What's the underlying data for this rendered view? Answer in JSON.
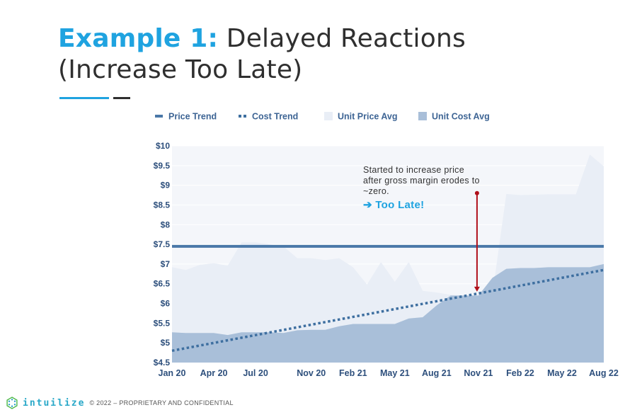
{
  "slide": {
    "title_accent": "Example 1:",
    "title_rest": " Delayed Reactions",
    "title_line2": "(Increase Too Late)",
    "brand": "intuilize",
    "copyright": "© 2022 – PROPRIETARY AND CONFIDENTIAL",
    "colors": {
      "accent": "#1fa3e0",
      "price_trend": "#4a78a8",
      "cost_trend": "#3e6fa0",
      "unit_price_avg": "#e9eef6",
      "unit_cost_avg": "#a9bfd9",
      "arrow": "#b0101a"
    }
  },
  "chart_data": {
    "type": "area",
    "legend_position": "top",
    "legend": [
      "Price Trend",
      "Cost Trend",
      "Unit Price Avg",
      "Unit Cost Avg"
    ],
    "x_tick_labels": [
      "Jan 20",
      "Apr 20",
      "Jul 20",
      "Nov 20",
      "Feb 21",
      "May 21",
      "Aug 21",
      "Nov 21",
      "Feb 22",
      "May 22",
      "Aug 22"
    ],
    "y_tick_labels": [
      "$10",
      "$9.5",
      "$9",
      "$8.5",
      "$8",
      "$7.5",
      "$7",
      "$6.5",
      "$6",
      "$5.5",
      "$5",
      "$4.5"
    ],
    "ylim": [
      4.5,
      10
    ],
    "grid": true,
    "months": [
      "Jan 20",
      "Feb 20",
      "Mar 20",
      "Apr 20",
      "May 20",
      "Jun 20",
      "Jul 20",
      "Aug 20",
      "Sep 20",
      "Oct 20",
      "Nov 20",
      "Dec 20",
      "Jan 21",
      "Feb 21",
      "Mar 21",
      "Apr 21",
      "May 21",
      "Jun 21",
      "Jul 21",
      "Aug 21",
      "Sep 21",
      "Oct 21",
      "Nov 21",
      "Dec 21",
      "Jan 22",
      "Feb 22",
      "Mar 22",
      "Apr 22",
      "May 22",
      "Jun 22",
      "Jul 22",
      "Aug 22"
    ],
    "series": [
      {
        "name": "Unit Price Avg",
        "kind": "area",
        "values": [
          6.92,
          6.85,
          6.98,
          7.02,
          6.96,
          7.55,
          7.55,
          7.5,
          7.45,
          7.15,
          7.15,
          7.1,
          7.15,
          6.92,
          6.48,
          7.05,
          6.55,
          7.05,
          6.32,
          6.28,
          6.22,
          6.2,
          6.22,
          6.22,
          8.78,
          8.75,
          8.76,
          8.77,
          8.77,
          8.77,
          9.78,
          9.48
        ]
      },
      {
        "name": "Unit Cost Avg",
        "kind": "area",
        "values": [
          5.27,
          5.25,
          5.25,
          5.25,
          5.2,
          5.27,
          5.27,
          5.27,
          5.25,
          5.32,
          5.33,
          5.33,
          5.42,
          5.48,
          5.48,
          5.48,
          5.48,
          5.62,
          5.65,
          5.95,
          6.2,
          6.2,
          6.2,
          6.65,
          6.88,
          6.9,
          6.9,
          6.92,
          6.92,
          6.92,
          6.92,
          7.0
        ]
      },
      {
        "name": "Price Trend",
        "kind": "line",
        "values": [
          7.45,
          7.45
        ]
      },
      {
        "name": "Cost Trend",
        "kind": "dotted-line",
        "values": [
          4.8,
          6.85
        ]
      }
    ],
    "annotation": {
      "text": "Started to increase price after gross margin erodes to ~zero.",
      "emphasis": "➔ Too Late!",
      "arrow_x": "Nov 21",
      "arrow_y_from": 8.8,
      "arrow_y_to": 6.3
    }
  }
}
